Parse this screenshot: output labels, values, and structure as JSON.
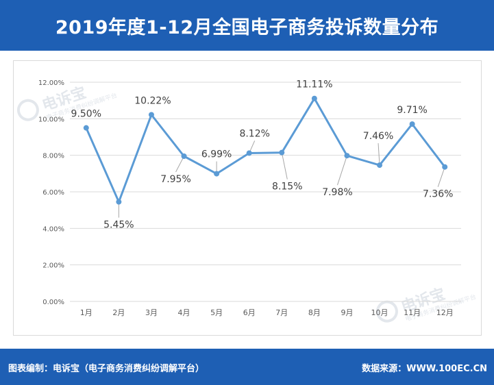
{
  "header": {
    "title": "2019年度1-12月全国电子商务投诉数量分布"
  },
  "footer": {
    "compiled_by": "图表编制：电诉宝（电子商务消费纠纷调解平台）",
    "source": "数据来源：WWW.100EC.CN"
  },
  "watermark": {
    "text": "电诉宝",
    "subtext": "电子商务消费纠纷调解平台"
  },
  "colors": {
    "brand": "#1e5fb4",
    "line": "#5b9bd5",
    "grid": "#d9d9d9"
  },
  "chart_data": {
    "type": "line",
    "categories": [
      "1月",
      "2月",
      "3月",
      "4月",
      "5月",
      "6月",
      "7月",
      "8月",
      "9月",
      "10月",
      "11月",
      "12月"
    ],
    "series": [
      {
        "values": [
          9.5,
          5.45,
          10.22,
          7.95,
          6.99,
          8.12,
          8.15,
          11.11,
          7.98,
          7.46,
          9.71,
          7.36
        ],
        "labels": [
          "9.50%",
          "5.45%",
          "10.22%",
          "7.95%",
          "6.99%",
          "8.12%",
          "8.15%",
          "11.11%",
          "7.98%",
          "7.46%",
          "9.71%",
          "7.36%"
        ]
      }
    ],
    "yticks": [
      "0.00%",
      "2.00%",
      "4.00%",
      "6.00%",
      "8.00%",
      "10.00%",
      "12.00%"
    ],
    "ylim": [
      0,
      12
    ],
    "grid": true,
    "legend": "none"
  }
}
